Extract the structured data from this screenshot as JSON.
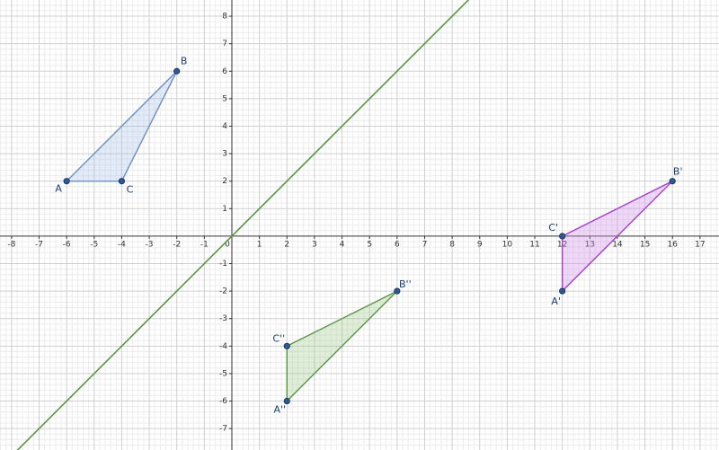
{
  "chart_data": {
    "type": "geometry",
    "xlim": [
      -8.42,
      17.69
    ],
    "ylim": [
      -7.78,
      8.59
    ],
    "xticks": [
      -8,
      -7,
      -6,
      -5,
      -4,
      -3,
      -2,
      -1,
      0,
      1,
      2,
      3,
      4,
      5,
      6,
      7,
      8,
      9,
      10,
      11,
      12,
      13,
      14,
      15,
      16,
      17
    ],
    "yticks": [
      -7,
      -6,
      -5,
      -4,
      -3,
      -2,
      -1,
      1,
      2,
      3,
      4,
      5,
      6,
      7,
      8
    ],
    "grid": true,
    "minor_divisions": 5,
    "lines": [
      {
        "color": "#5a9446",
        "slope": 1,
        "intercept": 0
      }
    ],
    "polygons": [
      {
        "color": "#6a8fc2",
        "fill": "rgba(160,190,230,0.3)",
        "point_color": "#2b5797",
        "points": [
          {
            "label": "A",
            "x": -6,
            "y": 2
          },
          {
            "label": "B",
            "x": -2,
            "y": 6
          },
          {
            "label": "C",
            "x": -4,
            "y": 2
          }
        ]
      },
      {
        "color": "#a63fc6",
        "fill": "rgba(210,140,235,0.35)",
        "point_color": "#2b5797",
        "points": [
          {
            "label": "A'",
            "x": 12,
            "y": -2
          },
          {
            "label": "B'",
            "x": 16,
            "y": 2
          },
          {
            "label": "C'",
            "x": 12,
            "y": 0
          }
        ]
      },
      {
        "color": "#5a9446",
        "fill": "rgba(150,200,130,0.3)",
        "point_color": "#2b5797",
        "points": [
          {
            "label": "A''",
            "x": 2,
            "y": -6
          },
          {
            "label": "B''",
            "x": 6,
            "y": -2
          },
          {
            "label": "C''",
            "x": 2,
            "y": -4
          }
        ]
      }
    ]
  }
}
